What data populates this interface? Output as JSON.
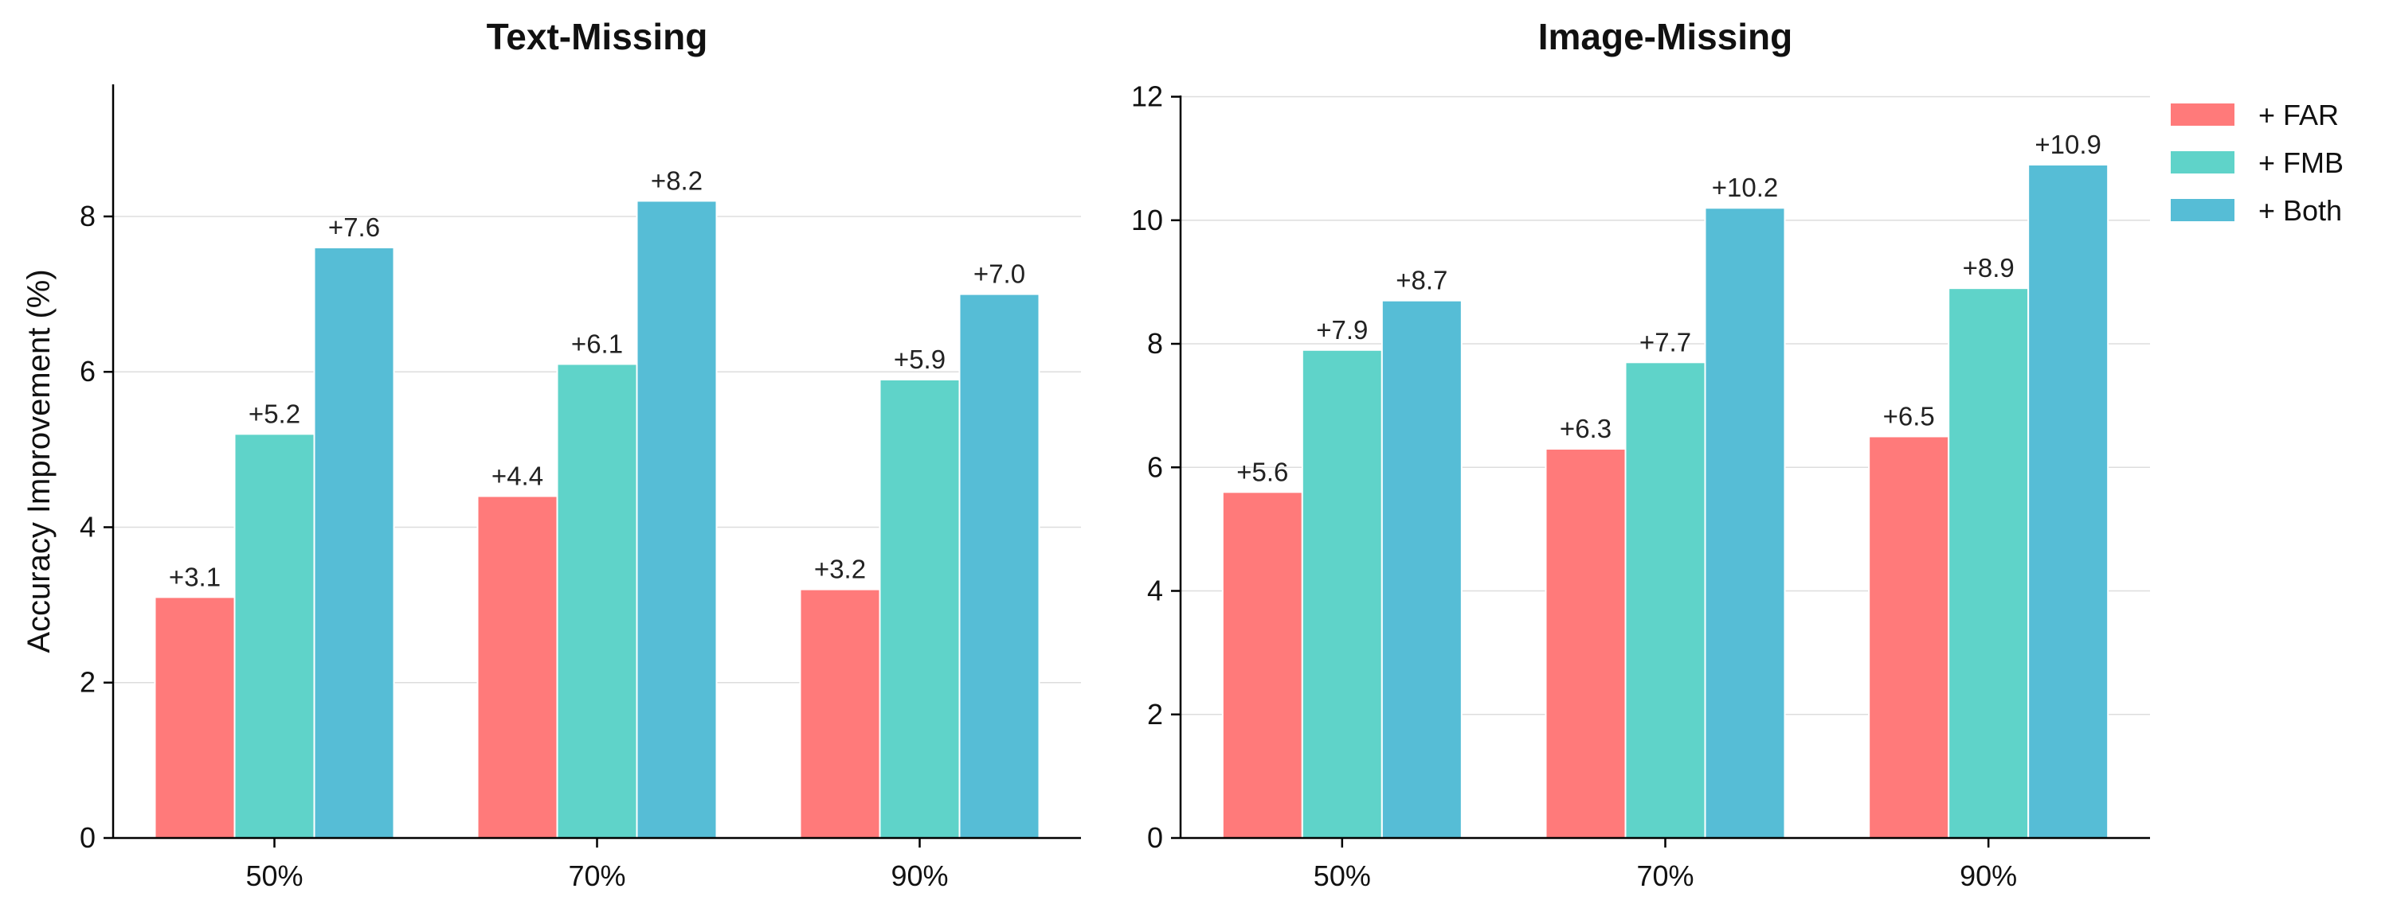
{
  "chart_data": [
    {
      "type": "bar",
      "title": "Text-Missing",
      "ylabel": "Accuracy Improvement (%)",
      "categories": [
        "50%",
        "70%",
        "90%"
      ],
      "ylim": [
        0,
        9.7
      ],
      "yticks": [
        0,
        2,
        4,
        6,
        8
      ],
      "grid": true,
      "series": [
        {
          "name": "+ FAR",
          "color": "#ff7a7a",
          "values": [
            3.1,
            4.4,
            3.2
          ],
          "labels": [
            "+3.1",
            "+4.4",
            "+3.2"
          ]
        },
        {
          "name": "+ FMB",
          "color": "#5fd3c9",
          "values": [
            5.2,
            6.1,
            5.9
          ],
          "labels": [
            "+5.2",
            "+6.1",
            "+5.9"
          ]
        },
        {
          "name": "+ Both",
          "color": "#56bdd6",
          "values": [
            7.6,
            8.2,
            7.0
          ],
          "labels": [
            "+7.6",
            "+8.2",
            "+7.0"
          ]
        }
      ]
    },
    {
      "type": "bar",
      "title": "Image-Missing",
      "ylabel": "",
      "categories": [
        "50%",
        "70%",
        "90%"
      ],
      "ylim": [
        0,
        12.2
      ],
      "yticks": [
        0,
        2,
        4,
        6,
        8,
        10,
        12
      ],
      "grid": true,
      "legend": "top-right",
      "series": [
        {
          "name": "+ FAR",
          "color": "#ff7a7a",
          "values": [
            5.6,
            6.3,
            6.5
          ],
          "labels": [
            "+5.6",
            "+6.3",
            "+6.5"
          ]
        },
        {
          "name": "+ FMB",
          "color": "#5fd3c9",
          "values": [
            7.9,
            7.7,
            8.9
          ],
          "labels": [
            "+7.9",
            "+7.7",
            "+8.9"
          ]
        },
        {
          "name": "+ Both",
          "color": "#56bdd6",
          "values": [
            8.7,
            10.2,
            10.9
          ],
          "labels": [
            "+8.7",
            "+10.2",
            "+10.9"
          ]
        }
      ]
    }
  ]
}
